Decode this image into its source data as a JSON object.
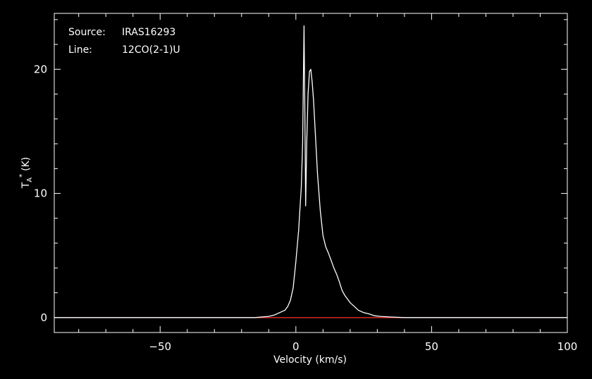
{
  "chart_data": {
    "type": "line",
    "annotations": {
      "source_label": "Source:",
      "source_value": "IRAS16293",
      "line_label": "Line:",
      "line_value": "12CO(2-1)U"
    },
    "xlabel": "Velocity (km/s)",
    "ylabel_main": "T",
    "ylabel_sub": "A",
    "ylabel_sup": "*",
    "ylabel_unit": "(K)",
    "xlim": [
      -89,
      100
    ],
    "ylim": [
      -1.2,
      24.5
    ],
    "xticks": [
      {
        "value": -50,
        "label": "−50"
      },
      {
        "value": 0,
        "label": "0"
      },
      {
        "value": 50,
        "label": "50"
      },
      {
        "value": 100,
        "label": "100"
      }
    ],
    "yticks": [
      {
        "value": 0,
        "label": "0"
      },
      {
        "value": 10,
        "label": "10"
      },
      {
        "value": 20,
        "label": "20"
      }
    ],
    "grid": false,
    "baseline": {
      "y": 0,
      "color": "#ff3030"
    },
    "colors": {
      "background": "#000000",
      "axes": "#ffffff",
      "spectrum": "#ffffff"
    },
    "series": [
      {
        "x": [
          -89,
          -60,
          -30,
          -15,
          -10,
          -8,
          -6,
          -4,
          -3,
          -2,
          -1,
          0,
          1,
          2,
          2.5,
          3,
          3.3,
          3.6,
          4,
          4.5,
          5,
          5.5,
          6,
          6.5,
          7,
          7.5,
          8,
          9,
          10,
          11,
          12,
          13,
          14,
          15,
          16,
          17,
          18,
          19,
          20,
          21,
          22,
          23,
          25,
          27,
          29,
          31,
          35,
          40,
          50,
          60,
          80,
          100
        ],
        "y": [
          0,
          0,
          0,
          0,
          0.1,
          0.2,
          0.4,
          0.6,
          0.9,
          1.4,
          2.4,
          4.5,
          7,
          10.5,
          14,
          23.5,
          17,
          9,
          14,
          18,
          19.8,
          20,
          19,
          17.5,
          15.5,
          13.5,
          11.5,
          8.6,
          6.6,
          5.7,
          5.2,
          4.6,
          4,
          3.5,
          2.9,
          2.2,
          1.8,
          1.5,
          1.2,
          1.0,
          0.8,
          0.6,
          0.4,
          0.3,
          0.15,
          0.1,
          0.05,
          0,
          0,
          0,
          0,
          0
        ]
      }
    ]
  }
}
